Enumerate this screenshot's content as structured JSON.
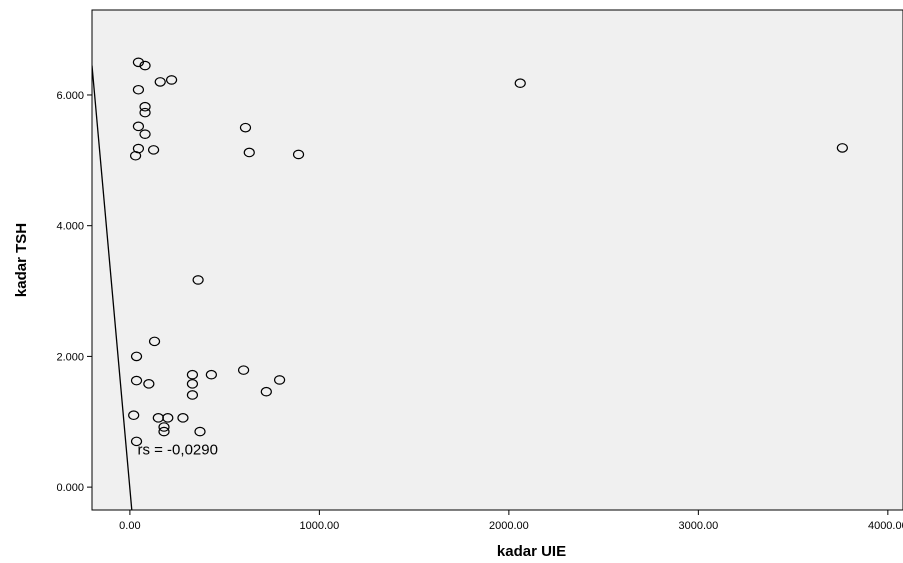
{
  "chart_data": {
    "type": "scatter",
    "title": "",
    "xlabel": "kadar UIE",
    "ylabel": "kadar TSH",
    "xlim": [
      -200,
      4080
    ],
    "ylim": [
      -0.35,
      7.3
    ],
    "xticks": [
      0,
      1000,
      2000,
      3000,
      4000
    ],
    "xtick_labels": [
      "0.00",
      "1000.00",
      "2000.00",
      "3000.00",
      "4000.00"
    ],
    "yticks": [
      0,
      2,
      4,
      6
    ],
    "ytick_labels": [
      "0.000",
      "2.000",
      "4.000",
      "6.000"
    ],
    "grid": false,
    "legend": "none",
    "background": "#f0f0f0",
    "marker_color": "#000000",
    "points": [
      {
        "x": 45,
        "y": 6.5
      },
      {
        "x": 80,
        "y": 6.45
      },
      {
        "x": 160,
        "y": 6.2
      },
      {
        "x": 220,
        "y": 6.23
      },
      {
        "x": 45,
        "y": 6.08
      },
      {
        "x": 80,
        "y": 5.82
      },
      {
        "x": 80,
        "y": 5.73
      },
      {
        "x": 45,
        "y": 5.52
      },
      {
        "x": 80,
        "y": 5.4
      },
      {
        "x": 45,
        "y": 5.18
      },
      {
        "x": 125,
        "y": 5.16
      },
      {
        "x": 30,
        "y": 5.07
      },
      {
        "x": 610,
        "y": 5.5
      },
      {
        "x": 630,
        "y": 5.12
      },
      {
        "x": 890,
        "y": 5.09
      },
      {
        "x": 2060,
        "y": 6.18
      },
      {
        "x": 3760,
        "y": 5.19
      },
      {
        "x": 360,
        "y": 3.17
      },
      {
        "x": 130,
        "y": 2.23
      },
      {
        "x": 35,
        "y": 2.0
      },
      {
        "x": 35,
        "y": 1.63
      },
      {
        "x": 100,
        "y": 1.58
      },
      {
        "x": 330,
        "y": 1.72
      },
      {
        "x": 330,
        "y": 1.58
      },
      {
        "x": 430,
        "y": 1.72
      },
      {
        "x": 600,
        "y": 1.79
      },
      {
        "x": 790,
        "y": 1.64
      },
      {
        "x": 720,
        "y": 1.46
      },
      {
        "x": 330,
        "y": 1.41
      },
      {
        "x": 20,
        "y": 1.1
      },
      {
        "x": 150,
        "y": 1.06
      },
      {
        "x": 200,
        "y": 1.06
      },
      {
        "x": 280,
        "y": 1.06
      },
      {
        "x": 180,
        "y": 0.92
      },
      {
        "x": 180,
        "y": 0.85
      },
      {
        "x": 370,
        "y": 0.85
      },
      {
        "x": 35,
        "y": 0.7
      }
    ],
    "fit_line": {
      "x": [
        -200,
        10
      ],
      "y": [
        6.45,
        -0.35
      ]
    },
    "annotations": [
      {
        "text": "rs = -0,0290",
        "x": 40,
        "y": 0.5
      }
    ]
  }
}
